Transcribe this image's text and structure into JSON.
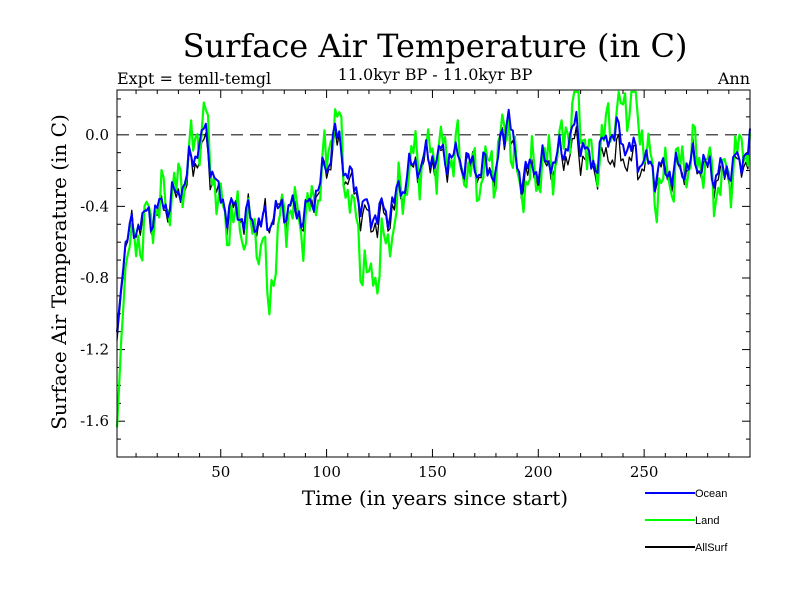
{
  "chart_data": {
    "type": "line",
    "title": "Surface Air Temperature (in C)",
    "subtitle": "11.0kyr BP - 11.0kyr BP",
    "left_note": "Expt = temll-temgl",
    "right_note": "Ann",
    "xlabel": "Time (in years since start)",
    "ylabel": "Surface Air Temperature (in C)",
    "xlim": [
      1,
      300
    ],
    "ylim": [
      -1.8,
      0.25
    ],
    "x_ticks": [
      50,
      100,
      150,
      200,
      250
    ],
    "x_tick_labels": [
      "50",
      "100",
      "150",
      "200",
      "250"
    ],
    "y_ticks": [
      0.0,
      -0.4,
      -0.8,
      -1.2,
      -1.6
    ],
    "y_tick_labels": [
      "0.0",
      "-0.4",
      "-0.8",
      "-1.2",
      "-1.6"
    ],
    "reference_line": 0.0,
    "legend_position": "bottom-right",
    "series": [
      {
        "name": "AllSurf",
        "color": "#000000",
        "x": [
          1,
          5,
          10,
          20,
          30,
          42,
          50,
          60,
          70,
          80,
          90,
          100,
          104,
          110,
          120,
          130,
          140,
          150,
          160,
          170,
          180,
          186,
          190,
          200,
          210,
          218,
          225,
          235,
          245,
          255,
          265,
          275,
          285,
          295,
          300
        ],
        "values": [
          -1.15,
          -0.62,
          -0.5,
          -0.45,
          -0.35,
          -0.05,
          -0.4,
          -0.45,
          -0.5,
          -0.4,
          -0.45,
          -0.2,
          -0.02,
          -0.25,
          -0.5,
          -0.45,
          -0.2,
          -0.15,
          -0.15,
          -0.18,
          -0.2,
          0.1,
          -0.25,
          -0.2,
          -0.15,
          -0.05,
          -0.2,
          -0.1,
          -0.15,
          -0.2,
          -0.22,
          -0.15,
          -0.25,
          -0.18,
          -0.1
        ]
      },
      {
        "name": "Land",
        "color": "#00ff00",
        "x": [
          1,
          5,
          10,
          20,
          30,
          42,
          50,
          60,
          70,
          72,
          80,
          90,
          100,
          104,
          110,
          120,
          130,
          140,
          150,
          160,
          170,
          180,
          186,
          190,
          200,
          210,
          218,
          225,
          235,
          245,
          255,
          265,
          275,
          285,
          295,
          300
        ],
        "values": [
          -1.65,
          -0.7,
          -0.6,
          -0.4,
          -0.3,
          0.1,
          -0.45,
          -0.5,
          -0.6,
          -0.95,
          -0.4,
          -0.5,
          -0.15,
          0.15,
          -0.3,
          -0.85,
          -0.55,
          -0.15,
          -0.1,
          -0.1,
          -0.25,
          -0.15,
          0.1,
          -0.3,
          -0.2,
          -0.1,
          0.22,
          -0.2,
          0.1,
          0.23,
          -0.3,
          -0.2,
          -0.1,
          -0.3,
          -0.1,
          0.0
        ]
      },
      {
        "name": "Ocean",
        "color": "#0000ff",
        "x": [
          1,
          5,
          10,
          20,
          30,
          42,
          50,
          60,
          70,
          80,
          90,
          100,
          104,
          110,
          120,
          130,
          140,
          150,
          160,
          170,
          180,
          186,
          190,
          200,
          210,
          218,
          225,
          235,
          245,
          255,
          265,
          275,
          285,
          295,
          300
        ],
        "values": [
          -1.1,
          -0.6,
          -0.5,
          -0.42,
          -0.33,
          0.02,
          -0.38,
          -0.45,
          -0.5,
          -0.4,
          -0.45,
          -0.18,
          0.02,
          -0.22,
          -0.45,
          -0.42,
          -0.18,
          -0.12,
          -0.12,
          -0.18,
          -0.2,
          0.15,
          -0.22,
          -0.18,
          -0.12,
          0.05,
          -0.18,
          0.03,
          -0.1,
          -0.2,
          -0.2,
          -0.15,
          -0.22,
          -0.15,
          -0.05
        ]
      }
    ],
    "legend": [
      {
        "label": "Ocean",
        "color": "#0000ff"
      },
      {
        "label": "Land",
        "color": "#00ff00"
      },
      {
        "label": "AllSurf",
        "color": "#000000"
      }
    ]
  }
}
